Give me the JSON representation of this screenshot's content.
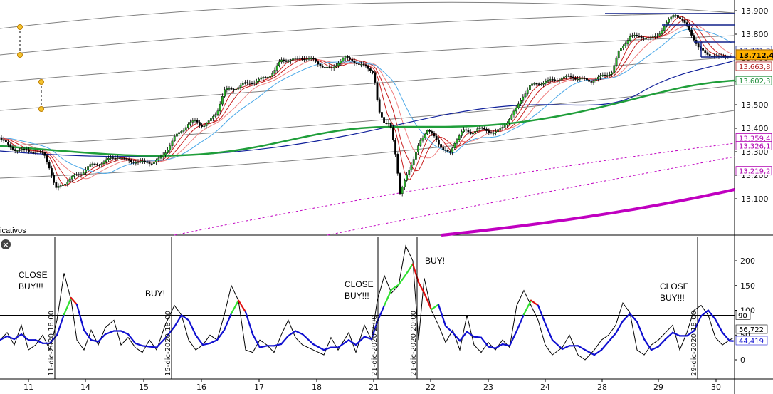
{
  "chart_data": [
    {
      "type": "candlestick",
      "panel": "price",
      "ylim": [
        13020,
        13920
      ],
      "y_ticks": [
        "13.900",
        "13.800",
        "13.700",
        "13.600",
        "13.500",
        "13.400",
        "13.300",
        "13.200",
        "13.100"
      ],
      "x_ticks": [
        "11",
        "14",
        "15",
        "16",
        "17",
        "18",
        "21",
        "22",
        "23",
        "24",
        "28",
        "29",
        "30"
      ],
      "current_price_label": "13.712,4",
      "level_labels": [
        {
          "text": "13.731,2",
          "value": 13731.2,
          "color": "#1a2b9a"
        },
        {
          "text": "13.663,8",
          "value": 13663.8,
          "color": "#b02020"
        },
        {
          "text": "13.602,3",
          "value": 13602.3,
          "color": "#1f8f3a"
        },
        {
          "text": "13.359,4",
          "value": 13359.4,
          "color": "#b000b0"
        },
        {
          "text": "13.326,1",
          "value": 13326.1,
          "color": "#b000b0"
        },
        {
          "text": "13.219,2",
          "value": 13219.2,
          "color": "#b000b0"
        }
      ],
      "close_path": [
        [
          0,
          13360
        ],
        [
          10,
          13330
        ],
        [
          20,
          13310
        ],
        [
          35,
          13305
        ],
        [
          50,
          13300
        ],
        [
          62,
          13290
        ],
        [
          70,
          13230
        ],
        [
          78,
          13140
        ],
        [
          88,
          13160
        ],
        [
          100,
          13190
        ],
        [
          115,
          13210
        ],
        [
          125,
          13240
        ],
        [
          140,
          13250
        ],
        [
          155,
          13270
        ],
        [
          165,
          13280
        ],
        [
          175,
          13265
        ],
        [
          185,
          13260
        ],
        [
          200,
          13255
        ],
        [
          215,
          13255
        ],
        [
          225,
          13270
        ],
        [
          235,
          13310
        ],
        [
          245,
          13360
        ],
        [
          255,
          13390
        ],
        [
          265,
          13420
        ],
        [
          275,
          13430
        ],
        [
          285,
          13410
        ],
        [
          295,
          13430
        ],
        [
          305,
          13470
        ],
        [
          315,
          13560
        ],
        [
          330,
          13570
        ],
        [
          345,
          13590
        ],
        [
          360,
          13600
        ],
        [
          375,
          13620
        ],
        [
          385,
          13640
        ],
        [
          395,
          13690
        ],
        [
          410,
          13690
        ],
        [
          425,
          13700
        ],
        [
          440,
          13690
        ],
        [
          455,
          13660
        ],
        [
          465,
          13650
        ],
        [
          475,
          13680
        ],
        [
          485,
          13700
        ],
        [
          495,
          13690
        ],
        [
          505,
          13670
        ],
        [
          515,
          13660
        ],
        [
          525,
          13640
        ],
        [
          532,
          13470
        ],
        [
          540,
          13420
        ],
        [
          548,
          13430
        ],
        [
          555,
          13300
        ],
        [
          562,
          13120
        ],
        [
          570,
          13200
        ],
        [
          580,
          13250
        ],
        [
          590,
          13350
        ],
        [
          600,
          13390
        ],
        [
          612,
          13360
        ],
        [
          622,
          13310
        ],
        [
          632,
          13290
        ],
        [
          640,
          13350
        ],
        [
          650,
          13390
        ],
        [
          662,
          13380
        ],
        [
          672,
          13400
        ],
        [
          685,
          13390
        ],
        [
          695,
          13380
        ],
        [
          705,
          13400
        ],
        [
          715,
          13440
        ],
        [
          725,
          13480
        ],
        [
          735,
          13540
        ],
        [
          745,
          13580
        ],
        [
          755,
          13590
        ],
        [
          770,
          13600
        ],
        [
          785,
          13610
        ],
        [
          800,
          13620
        ],
        [
          815,
          13610
        ],
        [
          830,
          13600
        ],
        [
          845,
          13620
        ],
        [
          860,
          13640
        ],
        [
          870,
          13730
        ],
        [
          885,
          13790
        ],
        [
          900,
          13790
        ],
        [
          915,
          13780
        ],
        [
          925,
          13800
        ],
        [
          935,
          13840
        ],
        [
          948,
          13890
        ],
        [
          958,
          13860
        ],
        [
          968,
          13820
        ],
        [
          975,
          13780
        ],
        [
          982,
          13740
        ],
        [
          990,
          13720
        ],
        [
          1000,
          13710
        ],
        [
          1010,
          13700
        ],
        [
          1020,
          13710
        ],
        [
          1030,
          13712
        ]
      ]
    },
    {
      "type": "line",
      "panel": "oscillator",
      "ylim": [
        -40,
        250
      ],
      "y_ticks": [
        "200",
        "150",
        "100",
        "50",
        "0"
      ],
      "horizontal_line": 90,
      "horizontal_line_label": "90",
      "current_values": [
        "56,722",
        "44,419"
      ],
      "series_values": [
        [
          0,
          40
        ],
        [
          10,
          55
        ],
        [
          20,
          30
        ],
        [
          30,
          70
        ],
        [
          40,
          20
        ],
        [
          50,
          30
        ],
        [
          60,
          50
        ],
        [
          70,
          20
        ],
        [
          80,
          80
        ],
        [
          90,
          175
        ],
        [
          100,
          120
        ],
        [
          108,
          40
        ],
        [
          118,
          20
        ],
        [
          128,
          60
        ],
        [
          138,
          30
        ],
        [
          148,
          65
        ],
        [
          160,
          80
        ],
        [
          170,
          30
        ],
        [
          180,
          45
        ],
        [
          190,
          25
        ],
        [
          200,
          15
        ],
        [
          210,
          40
        ],
        [
          220,
          20
        ],
        [
          232,
          70
        ],
        [
          245,
          110
        ],
        [
          255,
          90
        ],
        [
          265,
          40
        ],
        [
          275,
          20
        ],
        [
          285,
          30
        ],
        [
          295,
          50
        ],
        [
          305,
          40
        ],
        [
          315,
          90
        ],
        [
          325,
          150
        ],
        [
          335,
          120
        ],
        [
          345,
          20
        ],
        [
          355,
          15
        ],
        [
          365,
          40
        ],
        [
          375,
          30
        ],
        [
          385,
          15
        ],
        [
          395,
          50
        ],
        [
          405,
          80
        ],
        [
          415,
          45
        ],
        [
          425,
          30
        ],
        [
          440,
          20
        ],
        [
          455,
          10
        ],
        [
          465,
          45
        ],
        [
          475,
          20
        ],
        [
          490,
          55
        ],
        [
          500,
          15
        ],
        [
          512,
          70
        ],
        [
          522,
          40
        ],
        [
          530,
          120
        ],
        [
          540,
          170
        ],
        [
          550,
          135
        ],
        [
          560,
          150
        ],
        [
          570,
          230
        ],
        [
          580,
          200
        ],
        [
          588,
          40
        ],
        [
          596,
          165
        ],
        [
          606,
          100
        ],
        [
          616,
          70
        ],
        [
          626,
          35
        ],
        [
          636,
          60
        ],
        [
          646,
          20
        ],
        [
          656,
          90
        ],
        [
          666,
          30
        ],
        [
          676,
          15
        ],
        [
          686,
          35
        ],
        [
          696,
          20
        ],
        [
          706,
          40
        ],
        [
          716,
          25
        ],
        [
          726,
          110
        ],
        [
          736,
          140
        ],
        [
          746,
          110
        ],
        [
          756,
          80
        ],
        [
          766,
          30
        ],
        [
          776,
          10
        ],
        [
          790,
          25
        ],
        [
          800,
          50
        ],
        [
          812,
          10
        ],
        [
          822,
          0
        ],
        [
          835,
          20
        ],
        [
          845,
          40
        ],
        [
          855,
          50
        ],
        [
          865,
          70
        ],
        [
          875,
          115
        ],
        [
          885,
          95
        ],
        [
          895,
          20
        ],
        [
          905,
          10
        ],
        [
          915,
          30
        ],
        [
          925,
          40
        ],
        [
          935,
          55
        ],
        [
          945,
          70
        ],
        [
          955,
          20
        ],
        [
          965,
          55
        ],
        [
          975,
          100
        ],
        [
          985,
          110
        ],
        [
          995,
          90
        ],
        [
          1005,
          45
        ],
        [
          1015,
          30
        ],
        [
          1025,
          40
        ],
        [
          1030,
          44
        ]
      ],
      "signal_events": [
        {
          "x_date": "11-dic-2020 18:00",
          "label": "CLOSE BUY!!!"
        },
        {
          "x_date": "15-dic-2020 18:00",
          "label": "BUY!"
        },
        {
          "x_date": "21-dic-2020 2:00",
          "label": "CLOSE BUY!!!"
        },
        {
          "x_date": "21-dic-2020 20:00",
          "label": "BUY!"
        },
        {
          "x_date": "29-dic-2020 18:00",
          "label": "CLOSE BUY!!!"
        }
      ]
    }
  ],
  "panel_title": "icativos",
  "annotations": {
    "close1_line1": "CLOSE",
    "close1_line2": "BUY!!!",
    "buy1": "BUY!",
    "close2_line1": "CLOSE",
    "close2_line2": "BUY!!!",
    "buy2": "BUY!",
    "close3_line1": "CLOSE",
    "close3_line2": "BUY!!!"
  },
  "vlines": {
    "v1": "11-dic-2020 18:00",
    "v2": "15-dic-2020 18:00",
    "v3": "21-dic-2020 2:00",
    "v4": "21-dic-2020 20:00",
    "v5": "29-dic-2020 18:00"
  },
  "colors": {
    "candle_up": "#2bb52b",
    "candle_down": "#000000",
    "ema_fast": "#c81e1e",
    "ema_light": "#f08080",
    "ma_blue_light": "#4aa8e8",
    "ma_navy": "#10209a",
    "ma_green": "#1f9e3a",
    "magenta": "#c000c0",
    "osc_black": "#000000",
    "osc_blue": "#1010d0",
    "osc_red": "#e01010",
    "osc_green": "#30e030",
    "current_badge": "#ffb000"
  }
}
